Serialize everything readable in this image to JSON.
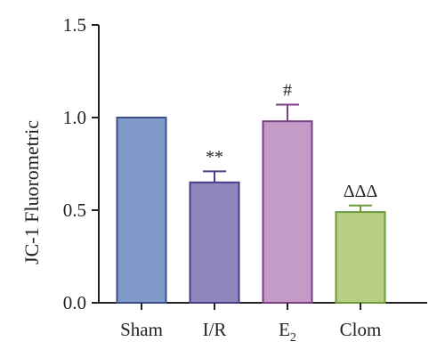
{
  "chart_data": {
    "type": "bar",
    "title": "",
    "xlabel": "",
    "ylabel": "JC-1 Fluorometric",
    "ylim": [
      0,
      1.5
    ],
    "yticks": [
      0.0,
      0.5,
      1.0,
      1.5
    ],
    "ytick_labels": [
      "0.0",
      "0.5",
      "1.0",
      "1.5"
    ],
    "categories": [
      "Sham",
      "I/R",
      "E",
      "Clom"
    ],
    "category_subscripts": [
      "",
      "",
      "2",
      ""
    ],
    "values": [
      1.0,
      0.65,
      0.98,
      0.49
    ],
    "errors": [
      0,
      0.06,
      0.09,
      0.035
    ],
    "annotations": [
      "",
      "**",
      "#",
      "ΔΔΔ"
    ],
    "colors": {
      "fill": [
        "#7f9ac9",
        "#9085bd",
        "#c39bc6",
        "#b7cf84"
      ],
      "stroke": [
        "#3d4f8f",
        "#4e3c86",
        "#7a3f83",
        "#6f9a3a"
      ]
    },
    "grid": false,
    "legend": "none"
  }
}
